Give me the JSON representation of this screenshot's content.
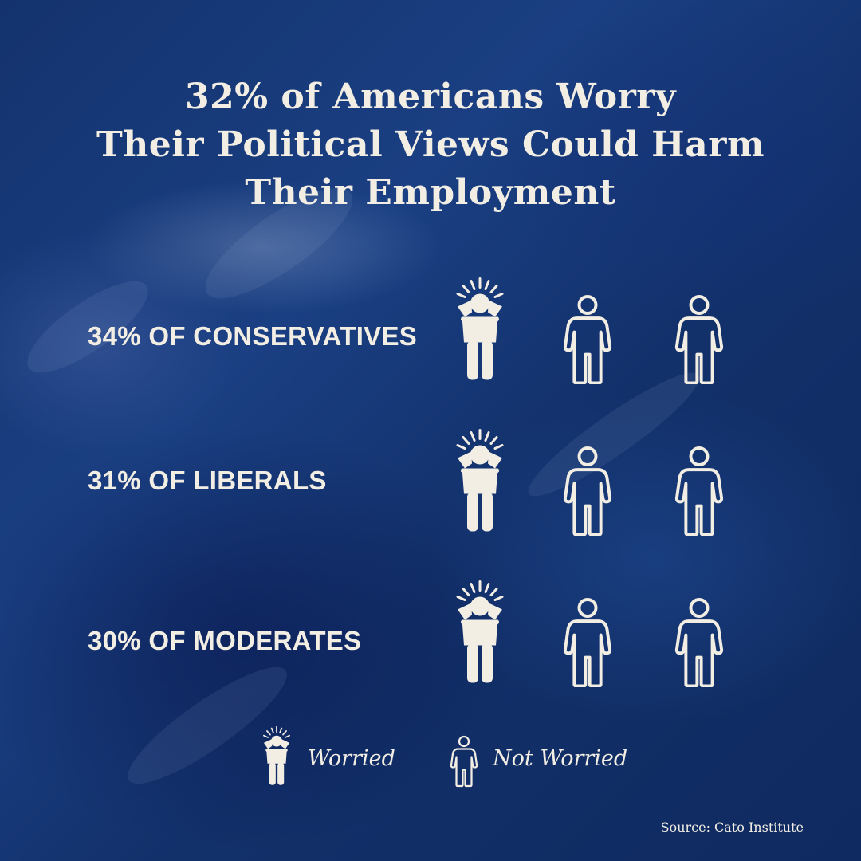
{
  "title": {
    "line1": "32% of Americans Worry",
    "line2": "Their Political Views Could Harm",
    "line3": "Their Employment"
  },
  "colors": {
    "background": "#163a7a",
    "text": "#f3eee4",
    "icon": "#f3eee4"
  },
  "chart_data": {
    "type": "pictogram",
    "title": "32% of Americans Worry Their Political Views Could Harm Their Employment",
    "overall_value": 32,
    "unit": "%",
    "icons_per_row": 3,
    "icon_names": {
      "worried": "worried-person-icon",
      "not_worried": "person-outline-icon"
    },
    "rows": [
      {
        "label": "34% OF CONSERVATIVES",
        "value": 34,
        "worried_icons": 1,
        "not_worried_icons": 2
      },
      {
        "label": "31% OF LIBERALS",
        "value": 31,
        "worried_icons": 1,
        "not_worried_icons": 2
      },
      {
        "label": "30% OF MODERATES",
        "value": 30,
        "worried_icons": 1,
        "not_worried_icons": 2
      }
    ],
    "legend": [
      {
        "label": "Worried",
        "icon": "worried-person-icon"
      },
      {
        "label": "Not Worried",
        "icon": "person-outline-icon"
      }
    ]
  },
  "source": "Source: Cato Institute"
}
